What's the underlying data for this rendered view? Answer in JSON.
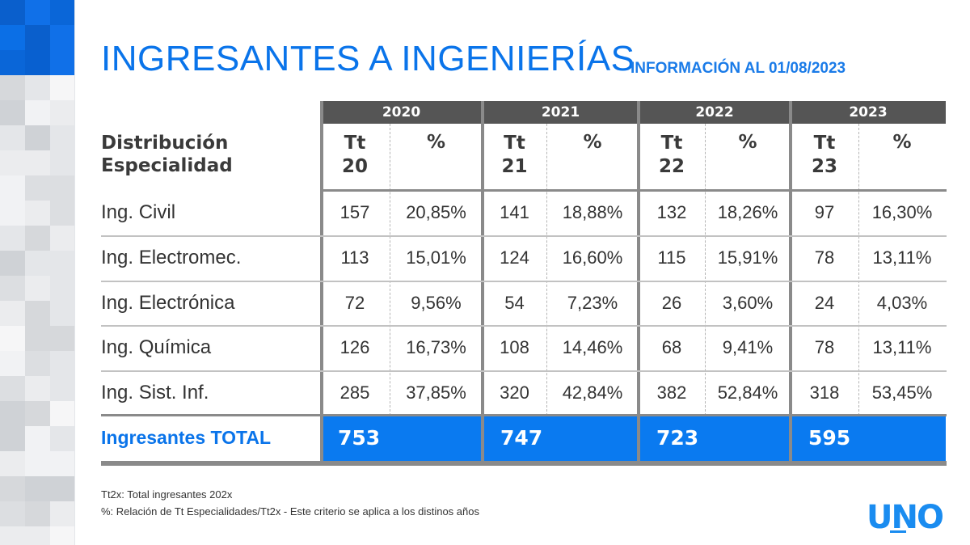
{
  "header": {
    "title": "INGRESANTES A INGENIERÍAS",
    "subtitle": "INFORMACIÓN AL 01/08/2023"
  },
  "table": {
    "label_header_line1": "Distribución",
    "label_header_line2": "Especialidad",
    "years": [
      {
        "year": "2020",
        "tt_line1": "Tt",
        "tt_line2": "20",
        "pct_label": "%"
      },
      {
        "year": "2021",
        "tt_line1": "Tt",
        "tt_line2": "21",
        "pct_label": "%"
      },
      {
        "year": "2022",
        "tt_line1": "Tt",
        "tt_line2": "22",
        "pct_label": "%"
      },
      {
        "year": "2023",
        "tt_line1": "Tt",
        "tt_line2": "23",
        "pct_label": "%"
      }
    ],
    "rows": [
      {
        "label": "Ing. Civil",
        "values": [
          {
            "tt": "157",
            "pct": "20,85%"
          },
          {
            "tt": "141",
            "pct": "18,88%"
          },
          {
            "tt": "132",
            "pct": "18,26%"
          },
          {
            "tt": "97",
            "pct": "16,30%"
          }
        ]
      },
      {
        "label": "Ing. Electromec.",
        "values": [
          {
            "tt": "113",
            "pct": "15,01%"
          },
          {
            "tt": "124",
            "pct": "16,60%"
          },
          {
            "tt": "115",
            "pct": "15,91%"
          },
          {
            "tt": "78",
            "pct": "13,11%"
          }
        ]
      },
      {
        "label": "Ing. Electrónica",
        "values": [
          {
            "tt": "72",
            "pct": "9,56%"
          },
          {
            "tt": "54",
            "pct": "7,23%"
          },
          {
            "tt": "26",
            "pct": "3,60%"
          },
          {
            "tt": "24",
            "pct": "4,03%"
          }
        ]
      },
      {
        "label": "Ing. Química",
        "values": [
          {
            "tt": "126",
            "pct": "16,73%"
          },
          {
            "tt": "108",
            "pct": "14,46%"
          },
          {
            "tt": "68",
            "pct": "9,41%"
          },
          {
            "tt": "78",
            "pct": "13,11%"
          }
        ]
      },
      {
        "label": "Ing. Sist. Inf.",
        "values": [
          {
            "tt": "285",
            "pct": "37,85%"
          },
          {
            "tt": "320",
            "pct": "42,84%"
          },
          {
            "tt": "382",
            "pct": "52,84%"
          },
          {
            "tt": "318",
            "pct": "53,45%"
          }
        ]
      }
    ],
    "total_label": "Ingresantes TOTAL",
    "totals": [
      "753",
      "747",
      "723",
      "595"
    ]
  },
  "footnotes": {
    "line1": "Tt2x: Total ingresantes 202x",
    "line2": "%: Relación de Tt Especialidades/Tt2x - Este criterio se aplica a los distinos años"
  },
  "logo": {
    "text": "UNO"
  },
  "colors": {
    "brand_blue": "#0a74ea",
    "total_fill": "#0a7af0",
    "year_band": "#555555",
    "grid_gray": "#8a8a8a"
  }
}
